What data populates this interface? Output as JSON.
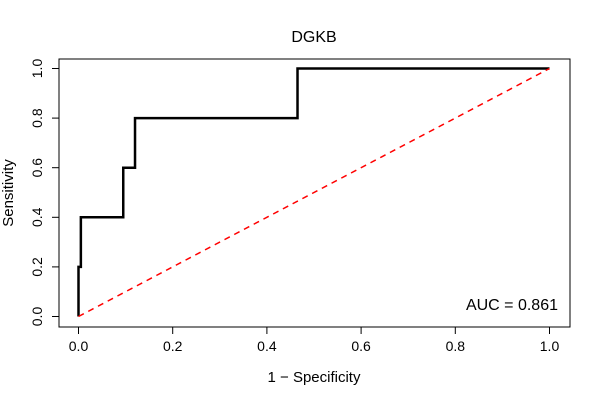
{
  "chart_data": {
    "type": "line",
    "title": "DGKB",
    "xlabel": "1 − Specificity",
    "ylabel": "Sensitivity",
    "xlim": [
      0,
      1
    ],
    "ylim": [
      0,
      1
    ],
    "x_ticks": [
      "0.0",
      "0.2",
      "0.4",
      "0.6",
      "0.8",
      "1.0"
    ],
    "y_ticks": [
      "0.0",
      "0.2",
      "0.4",
      "0.6",
      "0.8",
      "1.0"
    ],
    "annotation": "AUC = 0.861",
    "series": [
      {
        "name": "ROC curve",
        "color": "#000000",
        "style": "solid",
        "x": [
          0.0,
          0.0,
          0.005,
          0.005,
          0.01,
          0.01,
          0.095,
          0.095,
          0.12,
          0.12,
          0.465,
          0.465,
          1.0
        ],
        "y": [
          0.0,
          0.2,
          0.2,
          0.4,
          0.4,
          0.4,
          0.4,
          0.6,
          0.6,
          0.8,
          0.8,
          1.0,
          1.0
        ]
      },
      {
        "name": "Reference diagonal",
        "color": "#ff0000",
        "style": "dashed",
        "x": [
          0,
          1
        ],
        "y": [
          0,
          1
        ]
      }
    ]
  }
}
